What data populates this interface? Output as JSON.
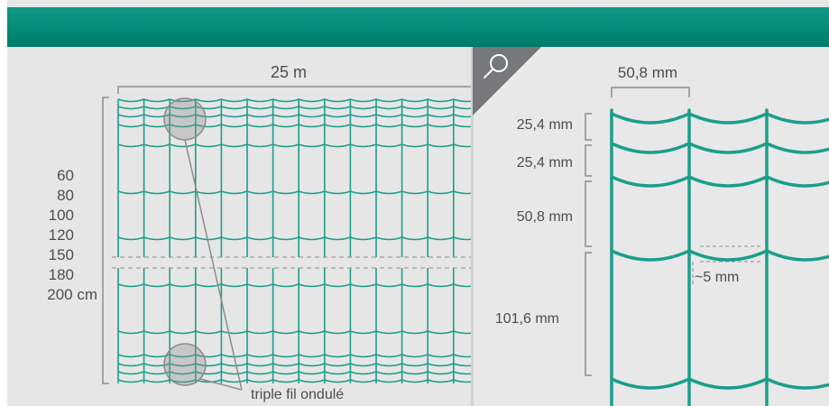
{
  "colors": {
    "accent": "#0a8f7b",
    "mesh": "#1c9e8b",
    "background": "#e6e6e7",
    "text": "#4d4d4d",
    "dimension_line": "#8c8c8c"
  },
  "overview": {
    "width_label": "25 m",
    "heights": [
      "60",
      "80",
      "100",
      "120",
      "150",
      "180",
      "200 cm"
    ],
    "callout_label": "triple fil ondulé"
  },
  "detail": {
    "icon": "magnifier-icon",
    "mesh_width_label": "50,8 mm",
    "spacing_labels": [
      "25,4 mm",
      "25,4 mm",
      "50,8 mm",
      "101,6 mm"
    ],
    "wave_depth_label": "~5 mm"
  }
}
